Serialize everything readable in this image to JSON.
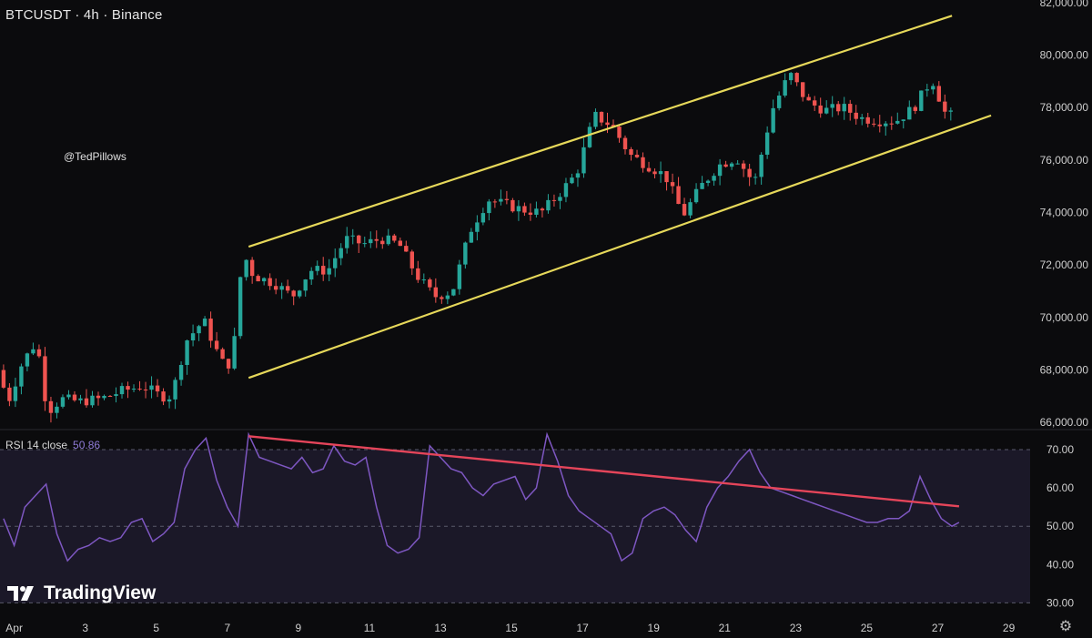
{
  "header": {
    "title": "BTCUSDT · 4h · Binance"
  },
  "watermark": "@TedPillows",
  "rsi_header": {
    "label": "RSI 14 close",
    "value": "50.86"
  },
  "brand": {
    "name": "TradingView",
    "icon": "tradingview-logo-icon"
  },
  "settings_icon": "gear-icon",
  "colors": {
    "bg": "#0b0b0d",
    "up": "#26a69a",
    "down": "#ef5350",
    "channel": "#e6d85a",
    "rsi_line": "#7e57c2",
    "rsi_band": "#1b1828",
    "trendline": "#e5455a"
  },
  "chart_data": [
    {
      "type": "candlestick",
      "title": "BTCUSDT · 4h · Binance",
      "x_ticks": [
        "Apr",
        "3",
        "5",
        "7",
        "9",
        "11",
        "13",
        "15",
        "17",
        "19",
        "21",
        "23",
        "25",
        "27",
        "29"
      ],
      "y_ticks": [
        "66,000.00",
        "68,000.00",
        "70,000.00",
        "72,000.00",
        "74,000.00",
        "76,000.00",
        "78,000.00",
        "80,000.00",
        "82,000.00"
      ],
      "ylim": [
        65800,
        82100
      ],
      "xlim": [
        0.6,
        29.6
      ],
      "path_points": [
        [
          0.7,
          68000
        ],
        [
          1.0,
          66800
        ],
        [
          1.4,
          68300
        ],
        [
          1.8,
          69100
        ],
        [
          2.1,
          66400
        ],
        [
          2.5,
          66900
        ],
        [
          3.0,
          66800
        ],
        [
          3.6,
          66900
        ],
        [
          4.2,
          67200
        ],
        [
          4.8,
          67400
        ],
        [
          5.3,
          67000
        ],
        [
          5.6,
          67000
        ],
        [
          6.0,
          69100
        ],
        [
          6.5,
          69900
        ],
        [
          7.0,
          68300
        ],
        [
          7.3,
          68200
        ],
        [
          7.6,
          72500
        ],
        [
          7.9,
          71600
        ],
        [
          8.5,
          71300
        ],
        [
          9.0,
          70800
        ],
        [
          9.5,
          71800
        ],
        [
          10.0,
          71800
        ],
        [
          10.5,
          73000
        ],
        [
          11.0,
          72800
        ],
        [
          11.5,
          73000
        ],
        [
          12.0,
          72800
        ],
        [
          12.5,
          71600
        ],
        [
          13.0,
          70800
        ],
        [
          13.5,
          71000
        ],
        [
          14.0,
          73300
        ],
        [
          14.5,
          74500
        ],
        [
          15.0,
          74300
        ],
        [
          15.5,
          74100
        ],
        [
          16.0,
          74000
        ],
        [
          16.5,
          74700
        ],
        [
          17.0,
          75500
        ],
        [
          17.5,
          77700
        ],
        [
          18.0,
          77300
        ],
        [
          18.5,
          76200
        ],
        [
          19.0,
          75800
        ],
        [
          19.5,
          75400
        ],
        [
          20.0,
          73900
        ],
        [
          20.5,
          75000
        ],
        [
          21.0,
          75800
        ],
        [
          21.5,
          76100
        ],
        [
          22.0,
          75100
        ],
        [
          22.5,
          77900
        ],
        [
          23.0,
          79300
        ],
        [
          23.5,
          78200
        ],
        [
          24.0,
          77900
        ],
        [
          24.5,
          78000
        ],
        [
          25.0,
          77600
        ],
        [
          25.5,
          77500
        ],
        [
          26.0,
          77500
        ],
        [
          26.5,
          78000
        ],
        [
          27.0,
          79100
        ],
        [
          27.4,
          77700
        ]
      ],
      "channel": [
        {
          "name": "upper",
          "from": [
            7.6,
            72700
          ],
          "to": [
            27.4,
            81500
          ]
        },
        {
          "name": "lower",
          "from": [
            7.6,
            67700
          ],
          "to": [
            28.5,
            77700
          ]
        }
      ]
    },
    {
      "type": "line",
      "title": "RSI 14 close",
      "y_ticks": [
        "30.00",
        "40.00",
        "50.00",
        "60.00",
        "70.00"
      ],
      "ylim": [
        27,
        75
      ],
      "band": [
        30,
        70
      ],
      "x": [
        0.7,
        1.0,
        1.3,
        1.6,
        1.9,
        2.2,
        2.5,
        2.8,
        3.1,
        3.4,
        3.7,
        4.0,
        4.3,
        4.6,
        4.9,
        5.2,
        5.5,
        5.8,
        6.1,
        6.4,
        6.7,
        7.0,
        7.3,
        7.6,
        7.9,
        8.2,
        8.5,
        8.8,
        9.1,
        9.4,
        9.7,
        10.0,
        10.3,
        10.6,
        10.9,
        11.2,
        11.5,
        11.8,
        12.1,
        12.4,
        12.7,
        13.0,
        13.3,
        13.6,
        13.9,
        14.2,
        14.5,
        14.8,
        15.1,
        15.4,
        15.7,
        16.0,
        16.3,
        16.6,
        16.9,
        17.2,
        17.5,
        17.8,
        18.1,
        18.4,
        18.7,
        19.0,
        19.3,
        19.6,
        19.9,
        20.2,
        20.5,
        20.8,
        21.1,
        21.4,
        21.7,
        22.0,
        22.3,
        22.6,
        22.9,
        23.2,
        23.5,
        23.8,
        24.1,
        24.4,
        24.7,
        25.0,
        25.3,
        25.6,
        25.9,
        26.2,
        26.5,
        26.8,
        27.1,
        27.4,
        27.6
      ],
      "values": [
        52,
        45,
        55,
        58,
        61,
        48,
        41,
        44,
        45,
        47,
        46,
        47,
        51,
        52,
        46,
        48,
        51,
        65,
        70,
        73,
        62,
        55,
        50,
        74,
        68,
        67,
        66,
        65,
        68,
        64,
        65,
        71,
        67,
        66,
        68,
        55,
        45,
        43,
        44,
        47,
        71,
        68,
        65,
        64,
        60,
        58,
        61,
        62,
        63,
        57,
        60,
        74,
        67,
        58,
        54,
        52,
        50,
        48,
        41,
        43,
        52,
        54,
        55,
        53,
        49,
        46,
        55,
        60,
        63,
        67,
        70,
        64,
        60,
        59,
        58,
        57,
        56,
        55,
        54,
        53,
        52,
        51,
        51,
        52,
        52,
        54,
        63,
        57,
        52,
        50,
        51
      ],
      "trendline": {
        "from": [
          7.6,
          73.5
        ],
        "to": [
          27.6,
          55.2
        ]
      }
    }
  ]
}
